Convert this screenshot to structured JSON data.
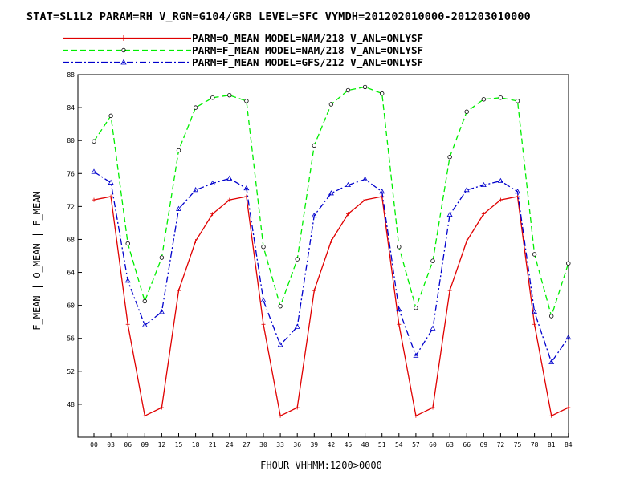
{
  "title": "STAT=SL1L2 PARAM=RH V_RGN=G104/GRB LEVEL=SFC VYMDH=201202010000-201203010000",
  "chart_data": {
    "type": "line",
    "title": "STAT=SL1L2 PARAM=RH V_RGN=G104/GRB LEVEL=SFC VYMDH=201202010000-201203010000",
    "xlabel": "FHOUR VHHMM:1200>0000",
    "ylabel": "F_MEAN | O_MEAN | F_MEAN",
    "categories": [
      "00",
      "03",
      "06",
      "09",
      "12",
      "15",
      "18",
      "21",
      "24",
      "27",
      "30",
      "33",
      "36",
      "39",
      "42",
      "45",
      "48",
      "51",
      "54",
      "57",
      "60",
      "63",
      "66",
      "69",
      "72",
      "75",
      "78",
      "81",
      "84"
    ],
    "ylim": [
      44,
      88
    ],
    "yticks": [
      "48",
      "52",
      "56",
      "60",
      "64",
      "68",
      "72",
      "76",
      "80",
      "84",
      "88"
    ],
    "grid": false,
    "legend_position": "top",
    "series": [
      {
        "name": "PARM=O_MEAN MODEL=NAM/218 V_ANL=ONLYSF",
        "color": "#e00000",
        "dash": "solid",
        "marker": "plus",
        "values": [
          72.8,
          73.2,
          57.7,
          46.6,
          47.6,
          61.8,
          67.8,
          71.1,
          72.8,
          73.2,
          57.7,
          46.6,
          47.6,
          61.8,
          67.8,
          71.1,
          72.8,
          73.2,
          57.7,
          46.6,
          47.6,
          61.8,
          67.8,
          71.1,
          72.8,
          73.2,
          57.7,
          46.6,
          47.6
        ]
      },
      {
        "name": "PARM=F_MEAN MODEL=NAM/218 V_ANL=ONLYSF",
        "color": "#00ee00",
        "dash": "dash",
        "marker": "circle",
        "values": [
          79.9,
          83.0,
          67.5,
          60.5,
          65.8,
          78.8,
          84.0,
          85.2,
          85.5,
          84.8,
          67.1,
          59.9,
          65.6,
          79.4,
          84.4,
          86.1,
          86.5,
          85.7,
          67.1,
          59.7,
          65.4,
          78.0,
          83.5,
          85.0,
          85.2,
          84.8,
          66.2,
          58.7,
          65.1
        ]
      },
      {
        "name": "PARM=F_MEAN MODEL=GFS/212 V_ANL=ONLYSF",
        "color": "#0000cc",
        "dash": "dashdot",
        "marker": "triangle",
        "values": [
          76.2,
          74.9,
          63.0,
          57.6,
          59.2,
          71.7,
          74.0,
          74.8,
          75.4,
          74.2,
          60.6,
          55.2,
          57.4,
          70.9,
          73.6,
          74.6,
          75.3,
          73.8,
          59.5,
          53.9,
          57.2,
          71.0,
          74.0,
          74.6,
          75.1,
          73.8,
          59.2,
          53.1,
          56.1
        ]
      }
    ]
  }
}
